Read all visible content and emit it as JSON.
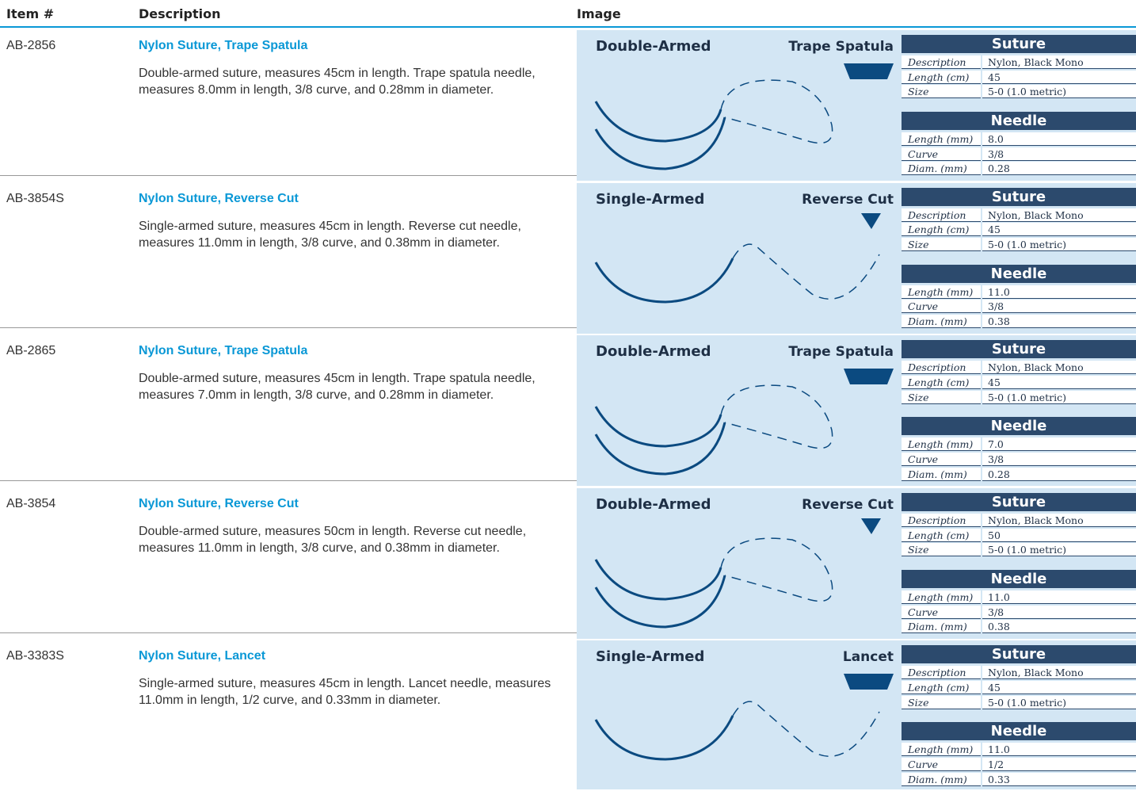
{
  "header": {
    "item": "Item #",
    "description": "Description",
    "image": "Image"
  },
  "rows": [
    {
      "item": "AB-2856",
      "title": "Nylon Suture, Trape Spatula",
      "description": "Double-armed suture, measures 45cm in length. Trape spatula needle, measures 8.0mm in length, 3/8 curve, and 0.28mm in diameter.",
      "arm": "Double-Armed",
      "needle_type": "Trape Spatula",
      "suture_table": {
        "title": "Suture",
        "rows": [
          [
            "Description",
            "Nylon, Black Mono"
          ],
          [
            "Length (cm)",
            "45"
          ],
          [
            "Size",
            "5-0 (1.0 metric)"
          ]
        ]
      },
      "needle_table": {
        "title": "Needle",
        "rows": [
          [
            "Length (mm)",
            "8.0"
          ],
          [
            "Curve",
            "3/8"
          ],
          [
            "Diam. (mm)",
            "0.28"
          ]
        ]
      }
    },
    {
      "item": "AB-3854S",
      "title": "Nylon Suture, Reverse Cut",
      "description": "Single-armed suture, measures 45cm in length. Reverse cut needle, measures 11.0mm in length, 3/8 curve, and 0.38mm in diameter.",
      "arm": "Single-Armed",
      "needle_type": "Reverse Cut",
      "suture_table": {
        "title": "Suture",
        "rows": [
          [
            "Description",
            "Nylon, Black Mono"
          ],
          [
            "Length (cm)",
            "45"
          ],
          [
            "Size",
            "5-0 (1.0 metric)"
          ]
        ]
      },
      "needle_table": {
        "title": "Needle",
        "rows": [
          [
            "Length (mm)",
            "11.0"
          ],
          [
            "Curve",
            "3/8"
          ],
          [
            "Diam. (mm)",
            "0.38"
          ]
        ]
      }
    },
    {
      "item": "AB-2865",
      "title": "Nylon Suture, Trape Spatula",
      "description": "Double-armed suture, measures 45cm in length. Trape spatula needle, measures 7.0mm in length, 3/8 curve, and 0.28mm in diameter.",
      "arm": "Double-Armed",
      "needle_type": "Trape Spatula",
      "suture_table": {
        "title": "Suture",
        "rows": [
          [
            "Description",
            "Nylon, Black Mono"
          ],
          [
            "Length (cm)",
            "45"
          ],
          [
            "Size",
            "5-0 (1.0 metric)"
          ]
        ]
      },
      "needle_table": {
        "title": "Needle",
        "rows": [
          [
            "Length (mm)",
            "7.0"
          ],
          [
            "Curve",
            "3/8"
          ],
          [
            "Diam. (mm)",
            "0.28"
          ]
        ]
      }
    },
    {
      "item": "AB-3854",
      "title": "Nylon Suture, Reverse Cut",
      "description": "Double-armed suture, measures 50cm in length. Reverse cut needle, measures 11.0mm in length, 3/8 curve, and 0.38mm in diameter.",
      "arm": "Double-Armed",
      "needle_type": "Reverse Cut",
      "suture_table": {
        "title": "Suture",
        "rows": [
          [
            "Description",
            "Nylon, Black Mono"
          ],
          [
            "Length (cm)",
            "50"
          ],
          [
            "Size",
            "5-0 (1.0 metric)"
          ]
        ]
      },
      "needle_table": {
        "title": "Needle",
        "rows": [
          [
            "Length (mm)",
            "11.0"
          ],
          [
            "Curve",
            "3/8"
          ],
          [
            "Diam. (mm)",
            "0.38"
          ]
        ]
      }
    },
    {
      "item": "AB-3383S",
      "title": "Nylon Suture, Lancet",
      "description": "Single-armed suture, measures 45cm in length. Lancet needle, measures 11.0mm in length, 1/2 curve, and 0.33mm in diameter.",
      "arm": "Single-Armed",
      "needle_type": "Lancet",
      "suture_table": {
        "title": "Suture",
        "rows": [
          [
            "Description",
            "Nylon, Black Mono"
          ],
          [
            "Length (cm)",
            "45"
          ],
          [
            "Size",
            "5-0 (1.0 metric)"
          ]
        ]
      },
      "needle_table": {
        "title": "Needle",
        "rows": [
          [
            "Length (mm)",
            "11.0"
          ],
          [
            "Curve",
            "1/2"
          ],
          [
            "Diam. (mm)",
            "0.33"
          ]
        ]
      }
    }
  ]
}
